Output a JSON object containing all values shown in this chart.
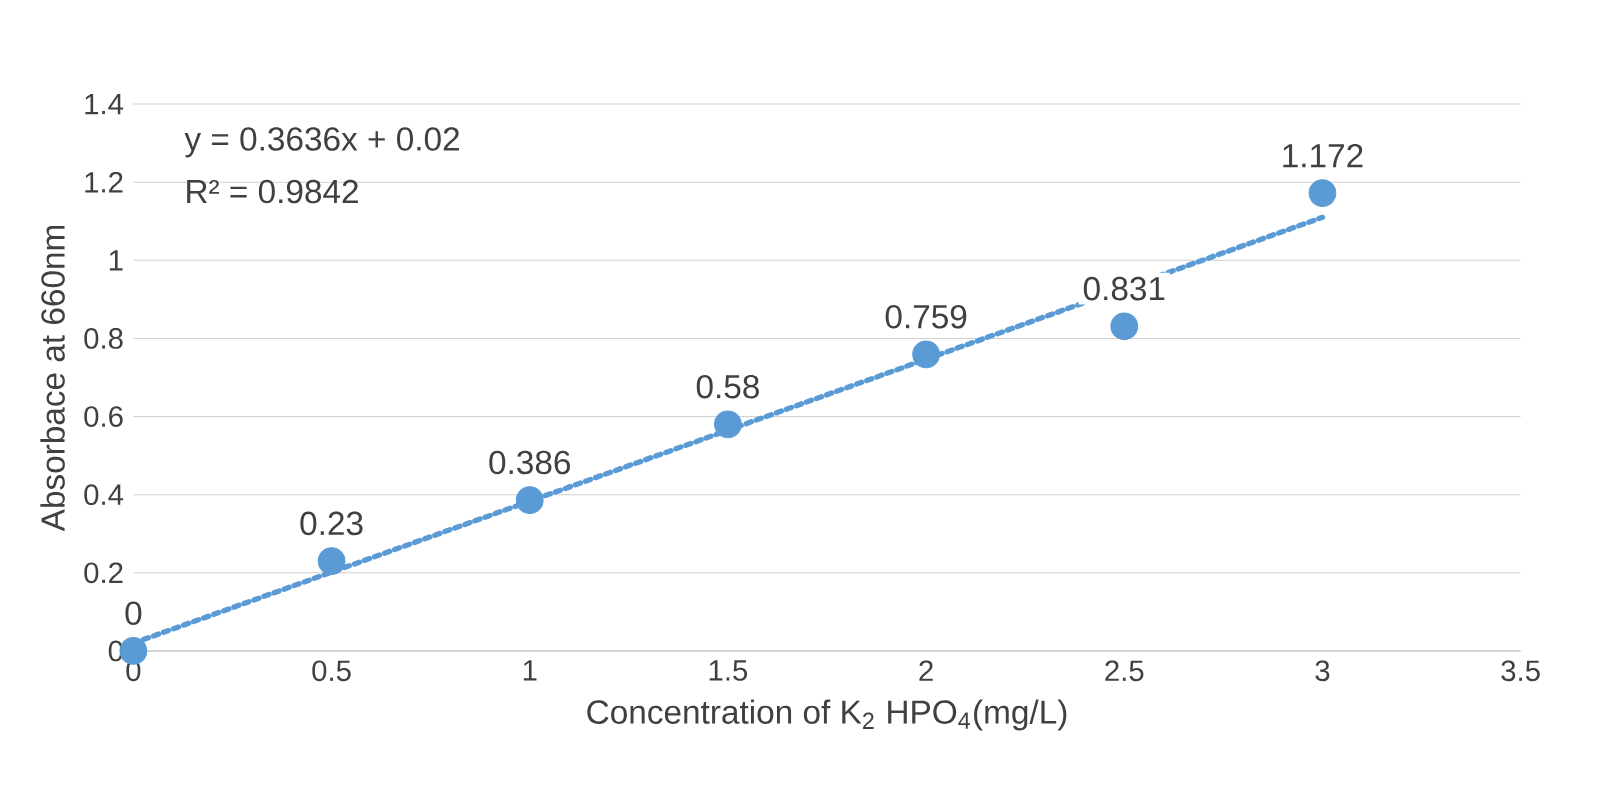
{
  "chart_data": {
    "type": "scatter",
    "xlabel": "Concentration of K$_{2}$ HPO$_{4}$(mg/L)",
    "ylabel": "Absorbace at 660nm",
    "x": [
      0,
      0.5,
      1,
      1.5,
      2,
      2.5,
      3
    ],
    "series": [
      {
        "color": "#5b9bd5",
        "marker": "circle",
        "values": [
          0,
          0.23,
          0.386,
          0.58,
          0.759,
          0.831,
          1.172
        ],
        "value_labels": [
          "0",
          "0.23",
          "0.386",
          "0.58",
          "0.759",
          "0.831",
          "1.172"
        ]
      },
      {
        "type": "line",
        "color": "#5b9bd5",
        "line_style": "dotted",
        "marker": "none",
        "x": [
          0,
          3
        ],
        "values": [
          0.02,
          1.11
        ]
      }
    ],
    "annotations": [
      "y = 0.3636x + 0.02",
      "R² = 0.9842"
    ],
    "xlim": [
      0,
      3.5
    ],
    "ylim": [
      0,
      1.4
    ],
    "xticks": [
      0,
      0.5,
      1,
      1.5,
      2,
      2.5,
      3,
      3.5
    ],
    "yticks": [
      0,
      0.2,
      0.4,
      0.6,
      0.8,
      1,
      1.2,
      1.4
    ],
    "grid": "y"
  }
}
